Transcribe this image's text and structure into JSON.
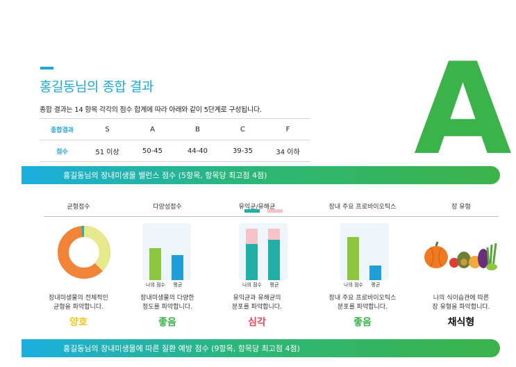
{
  "header": {
    "title": "홍길동님의 종합 결과",
    "grade": "A",
    "intro": "종합 결과는 14 항목 각각의 점수 합계에 따라 아래와 같이 5단계로 구성됩니다."
  },
  "score_table": {
    "row1": [
      "종합결과",
      "S",
      "A",
      "B",
      "C",
      "F"
    ],
    "row2": [
      "점수",
      "51 이상",
      "50-45",
      "44-40",
      "39-35",
      "34 이하"
    ]
  },
  "banners": {
    "balance": "홍길동님의 장내미생물 밸런스 점수 (5항목, 항목당 최고점 4점)",
    "disease": "홍길동님의 장내미생물에 따른 질환 예방 점수 (9항목, 항목당 최고점 4점)"
  },
  "columns": [
    {
      "head": "균형점수",
      "desc1": "장내미생물의 전체적인",
      "desc2": "균형을 파악합니다.",
      "verdict": "양호",
      "color": "#f5c518"
    },
    {
      "head": "다양성점수",
      "desc1": "장내미생물의 다양한",
      "desc2": "정도를 파악합니다.",
      "verdict": "좋음",
      "color": "#3cb34a"
    },
    {
      "head": "유익균/유해균",
      "desc1": "유익균과 유해균의",
      "desc2": "분포를 파악합니다.",
      "verdict": "심각",
      "color": "#e84a5a"
    },
    {
      "head": "장내 주요 프로바이오틱스",
      "desc1": "장내 주요 프로바이오틱스",
      "desc2": "분포를 파악합니다.",
      "verdict": "좋음",
      "color": "#3cb34a"
    },
    {
      "head": "장 유형",
      "desc1": "나의 식이습관에 따른",
      "desc2": "장 유형을 파악합니다.",
      "verdict": "채식형",
      "color": "#111111"
    }
  ],
  "bar_labels": {
    "mine": "나의 점수",
    "avg": "평균"
  },
  "colors": {
    "accent": "#1fa7d6",
    "grade": "#3cb34a",
    "donut_orange": "#f2843a",
    "donut_yellow": "#e7ea8c",
    "donut_teal": "#20b2aa",
    "mine_green": "#8cc63f",
    "avg_blue": "#1e9fd8",
    "teal": "#22b0a6",
    "pink": "#f6c4c8"
  },
  "icons": {
    "vegetables": "vegetables-icon"
  }
}
